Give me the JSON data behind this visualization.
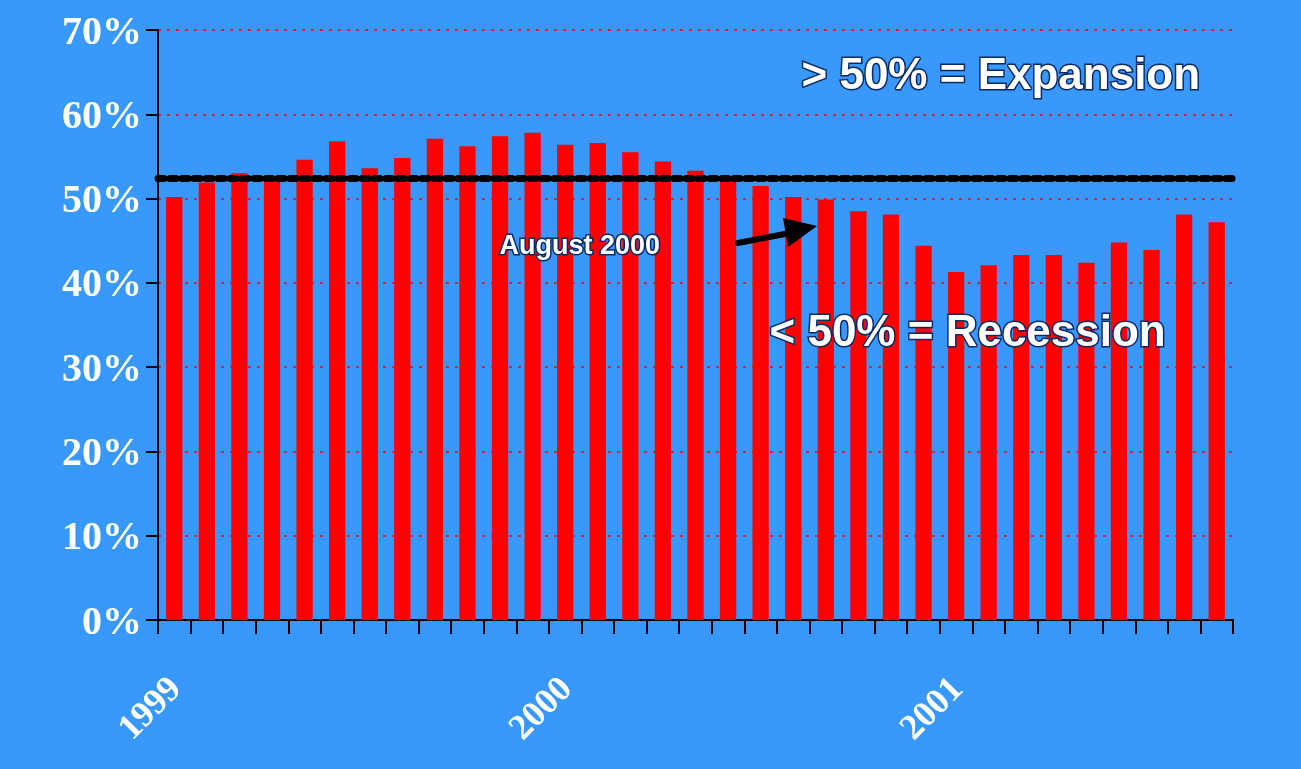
{
  "chart_data": {
    "type": "bar",
    "categories": [
      "1999",
      null,
      null,
      null,
      null,
      null,
      null,
      null,
      null,
      null,
      null,
      null,
      "2000",
      null,
      null,
      null,
      null,
      null,
      null,
      null,
      null,
      null,
      null,
      null,
      "2001",
      null,
      null,
      null,
      null,
      null,
      null,
      null,
      null
    ],
    "values": [
      50.2,
      51.9,
      53.0,
      52.1,
      54.6,
      56.8,
      53.6,
      54.8,
      57.1,
      56.2,
      57.4,
      57.8,
      56.4,
      56.6,
      55.5,
      54.4,
      53.3,
      52.3,
      51.5,
      50.2,
      49.9,
      48.5,
      48.1,
      44.4,
      41.3,
      42.1,
      43.3,
      43.3,
      42.4,
      44.8,
      43.9,
      48.1,
      47.2
    ],
    "color": "#ff0000",
    "ylim": [
      0,
      70
    ],
    "yticks": [
      {
        "value": 0,
        "label": "0%"
      },
      {
        "value": 10,
        "label": "10%"
      },
      {
        "value": 20,
        "label": "20%"
      },
      {
        "value": 30,
        "label": "30%"
      },
      {
        "value": 40,
        "label": "40%"
      },
      {
        "value": 50,
        "label": "50%"
      },
      {
        "value": 60,
        "label": "60%"
      },
      {
        "value": 70,
        "label": "70%"
      }
    ],
    "grid": "y",
    "ref_lines": [
      {
        "axis": "y",
        "value": 52.4,
        "color": "#000000",
        "line_style": "dashed"
      }
    ],
    "annotations": [
      "> 50% = Expansion",
      "< 50% = Recession",
      "August 2000"
    ]
  }
}
